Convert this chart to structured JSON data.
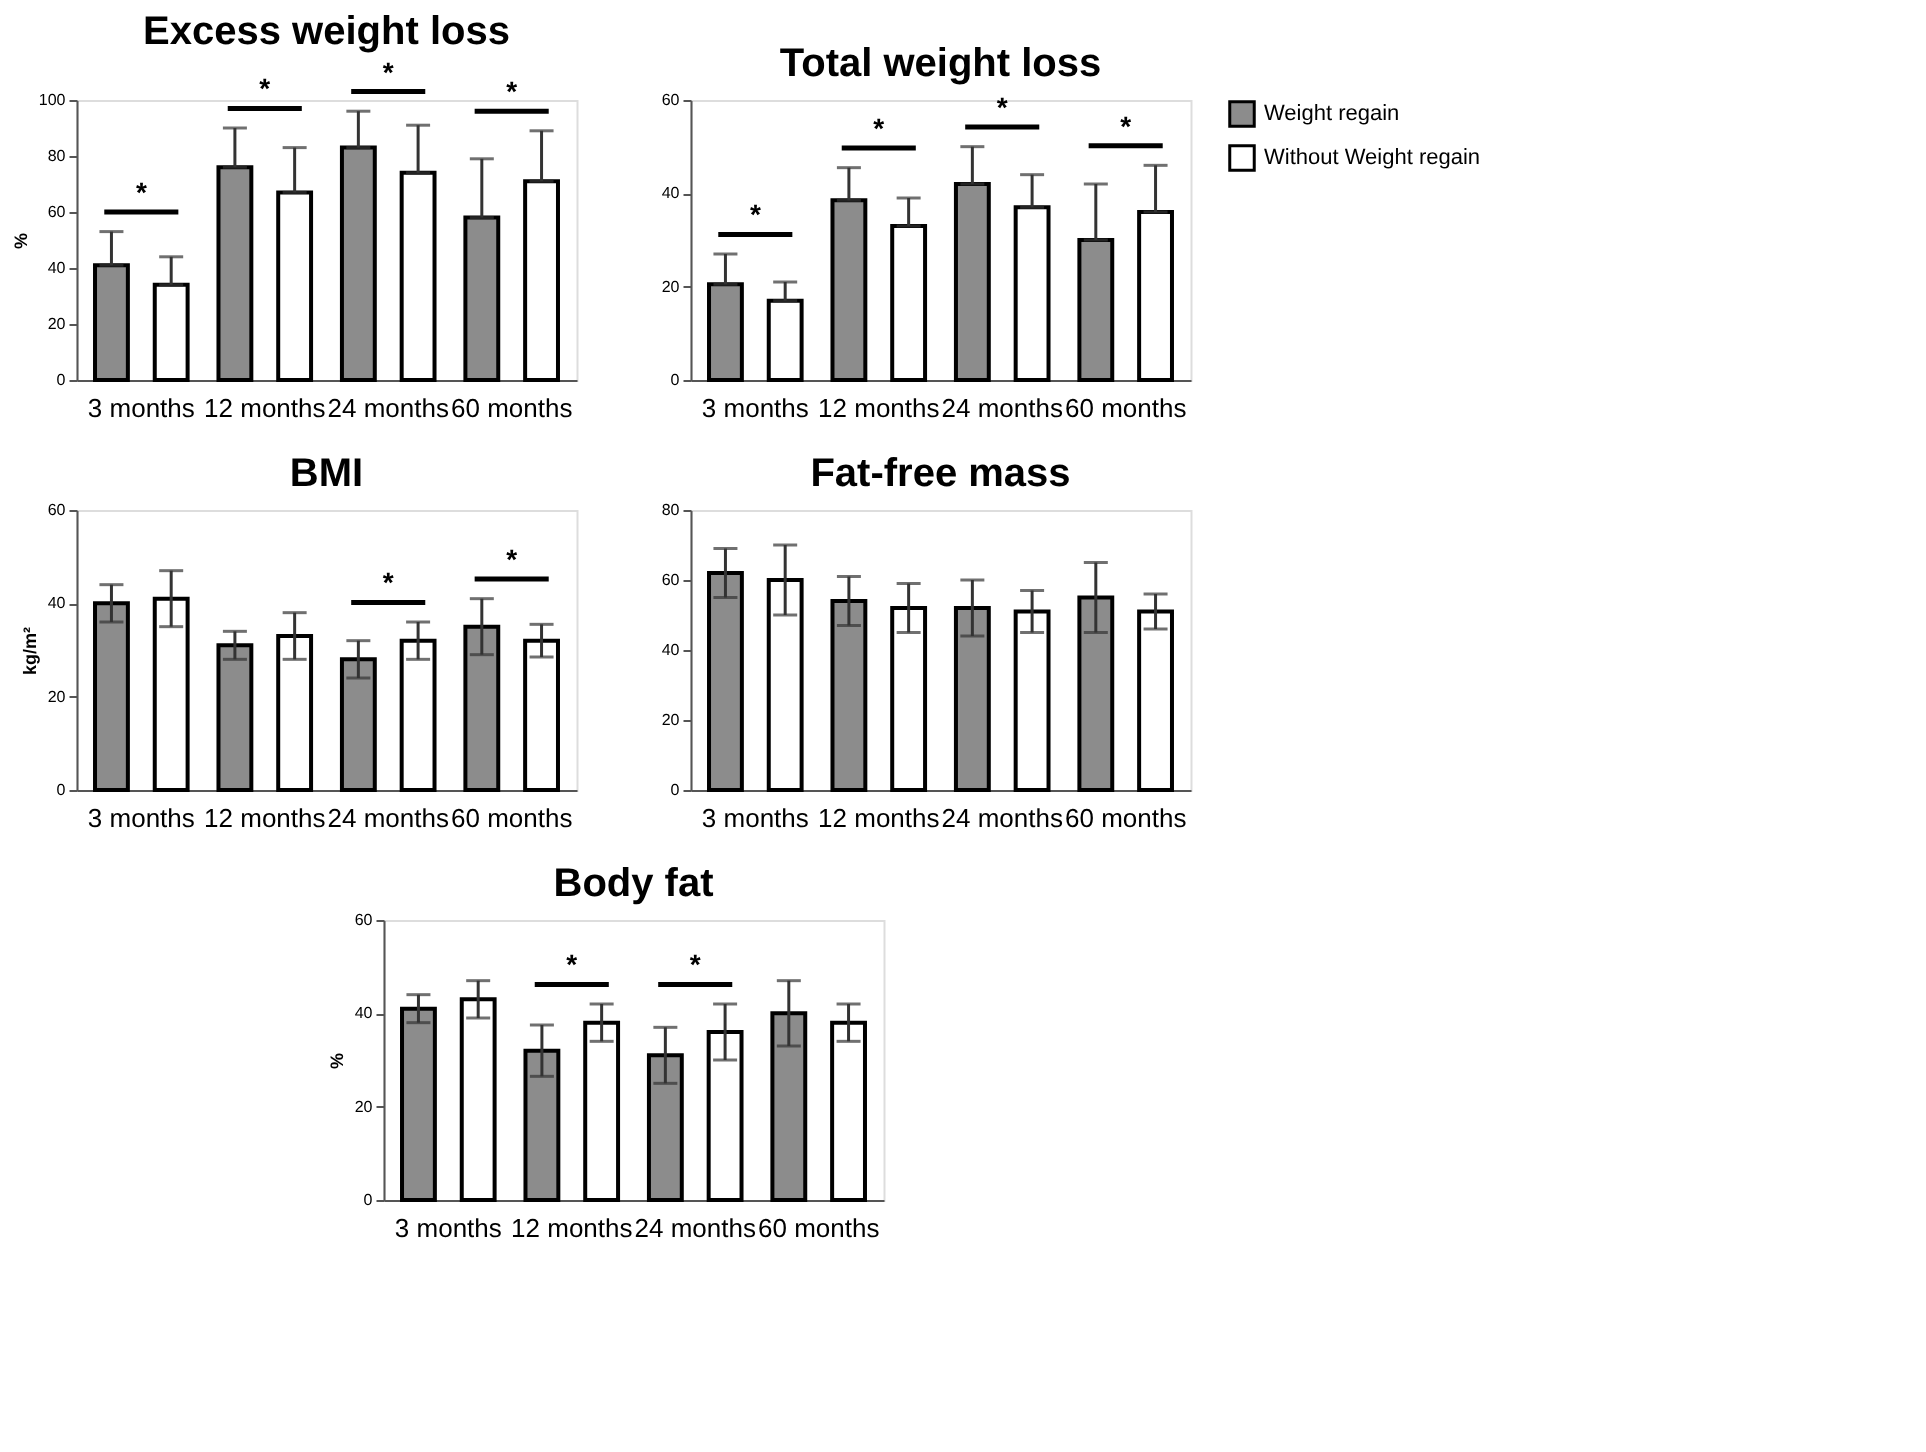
{
  "chart_data": [
    {
      "type": "bar",
      "title": "Excess weight loss",
      "ylabel": "%",
      "categories": [
        "3 months",
        "12 months",
        "24 months",
        "60 months"
      ],
      "ylim": [
        0,
        100
      ],
      "yticks": [
        0,
        20,
        40,
        60,
        80,
        100
      ],
      "grid": false,
      "legend": "right",
      "series": [
        {
          "name": "Weight regain",
          "color": "#8c8c8c",
          "values": [
            41,
            76,
            83,
            58
          ],
          "errors": [
            [
              41,
              53
            ],
            [
              76,
              90
            ],
            [
              83,
              96
            ],
            [
              58,
              79
            ]
          ]
        },
        {
          "name": "Without Weight regain",
          "color": "#ffffff",
          "values": [
            34,
            67,
            74,
            71
          ],
          "errors": [
            [
              34,
              44
            ],
            [
              67,
              83
            ],
            [
              74,
              91
            ],
            [
              71,
              89
            ]
          ]
        }
      ],
      "annotations": [
        "*",
        "*",
        "*",
        "*"
      ]
    },
    {
      "type": "bar",
      "title": "Total weight loss",
      "categories": [
        "3 months",
        "12 months",
        "24 months",
        "60 months"
      ],
      "ylim": [
        0,
        60
      ],
      "yticks": [
        0,
        20,
        40,
        60
      ],
      "grid": false,
      "legend": "right",
      "series": [
        {
          "name": "Weight regain",
          "color": "#8c8c8c",
          "values": [
            20.5,
            38.5,
            42,
            30
          ],
          "errors": [
            [
              20.5,
              27
            ],
            [
              38.5,
              45.5
            ],
            [
              42,
              50
            ],
            [
              30,
              42
            ]
          ]
        },
        {
          "name": "Without Weight regain",
          "color": "#ffffff",
          "values": [
            17,
            33,
            37,
            36
          ],
          "errors": [
            [
              17,
              21
            ],
            [
              33,
              39
            ],
            [
              37,
              44
            ],
            [
              36,
              46
            ]
          ]
        }
      ],
      "annotations": [
        "*",
        "*",
        "*",
        "*"
      ]
    },
    {
      "type": "bar",
      "title": "BMI",
      "ylabel": "kg/m²",
      "categories": [
        "3 months",
        "12 months",
        "24 months",
        "60 months"
      ],
      "ylim": [
        0,
        60
      ],
      "yticks": [
        0,
        20,
        40,
        60
      ],
      "grid": false,
      "legend": "right",
      "series": [
        {
          "name": "Weight regain",
          "color": "#8c8c8c",
          "values": [
            40,
            31,
            28,
            35
          ],
          "errors": [
            4,
            3,
            4,
            6
          ]
        },
        {
          "name": "Without Weight regain",
          "color": "#ffffff",
          "values": [
            41,
            33,
            32,
            32
          ],
          "errors": [
            6,
            5,
            4,
            3.5
          ]
        }
      ],
      "annotations": [
        null,
        null,
        "*",
        "*"
      ]
    },
    {
      "type": "bar",
      "title": "Fat-free mass",
      "categories": [
        "3 months",
        "12 months",
        "24 months",
        "60 months"
      ],
      "ylim": [
        0,
        80
      ],
      "yticks": [
        0,
        20,
        40,
        60,
        80
      ],
      "grid": false,
      "legend": "right",
      "series": [
        {
          "name": "Weight regain",
          "color": "#8c8c8c",
          "values": [
            62,
            54,
            52,
            55
          ],
          "errors": [
            7,
            7,
            8,
            10
          ]
        },
        {
          "name": "Without Weight regain",
          "color": "#ffffff",
          "values": [
            60,
            52,
            51,
            51
          ],
          "errors": [
            10,
            7,
            6,
            5
          ]
        }
      ]
    },
    {
      "type": "bar",
      "title": "Body fat",
      "ylabel": "%",
      "categories": [
        "3 months",
        "12 months",
        "24 months",
        "60 months"
      ],
      "ylim": [
        0,
        60
      ],
      "yticks": [
        0,
        20,
        40,
        60
      ],
      "grid": false,
      "legend": "right",
      "series": [
        {
          "name": "Weight regain",
          "color": "#8c8c8c",
          "values": [
            41,
            32,
            31,
            40
          ],
          "errors": [
            3,
            5.5,
            6,
            7
          ]
        },
        {
          "name": "Without Weight regain",
          "color": "#ffffff",
          "values": [
            43,
            38,
            36,
            38
          ],
          "errors": [
            4,
            4,
            6,
            4
          ]
        }
      ],
      "annotations": [
        null,
        "*",
        "*",
        null
      ]
    }
  ]
}
